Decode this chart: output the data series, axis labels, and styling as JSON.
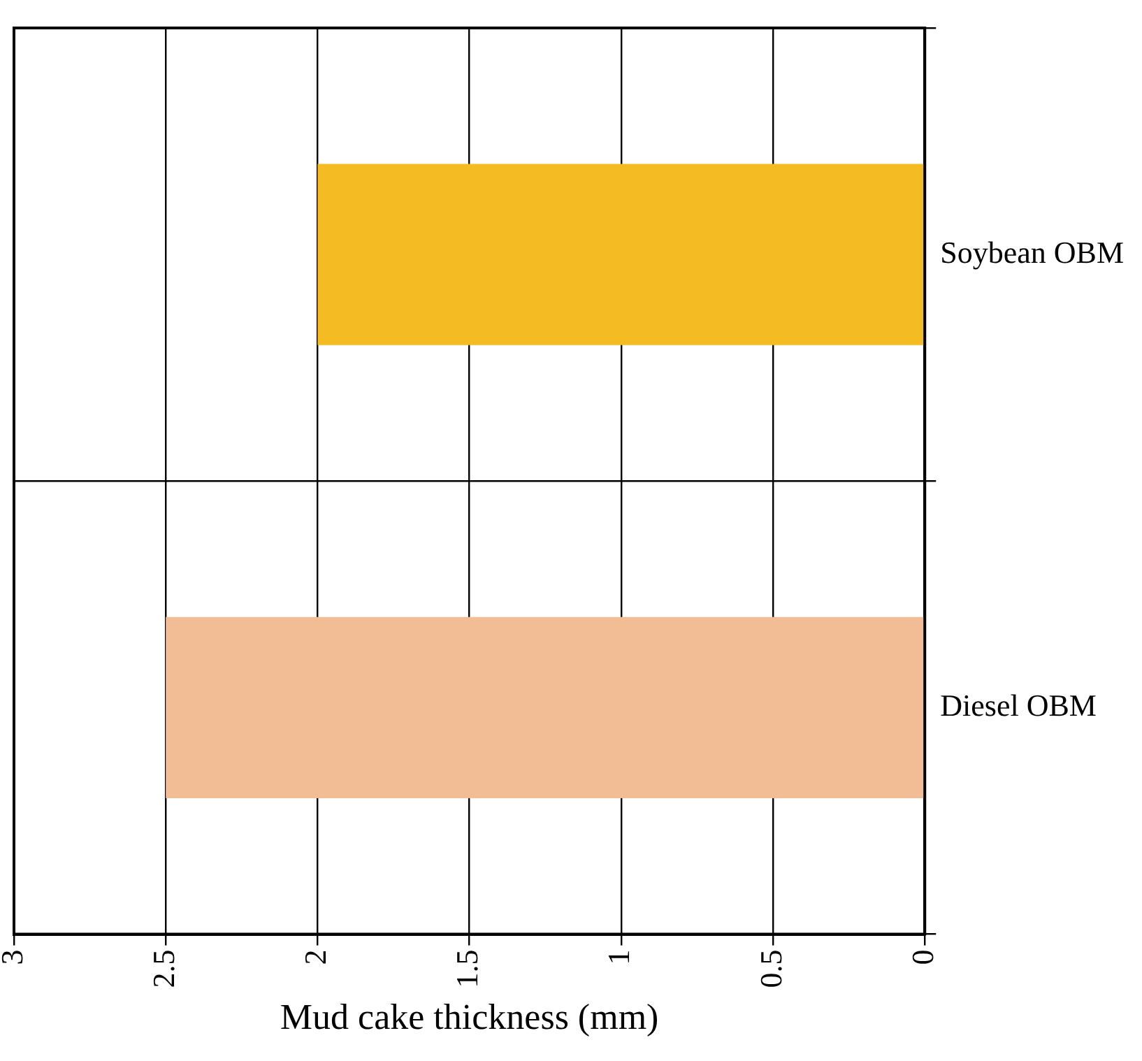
{
  "chart_data": {
    "type": "bar",
    "orientation": "horizontal",
    "categories": [
      "Soybean OBM",
      "Diesel OBM"
    ],
    "values": [
      2,
      2.5
    ],
    "colors": [
      "#f4bb22",
      "#f2bd94"
    ],
    "xlabel": "Mud cake thickness (mm)",
    "xlim": [
      3,
      0
    ],
    "xticks": [
      3,
      2.5,
      2,
      1.5,
      1,
      0.5,
      0
    ],
    "grid": true
  }
}
